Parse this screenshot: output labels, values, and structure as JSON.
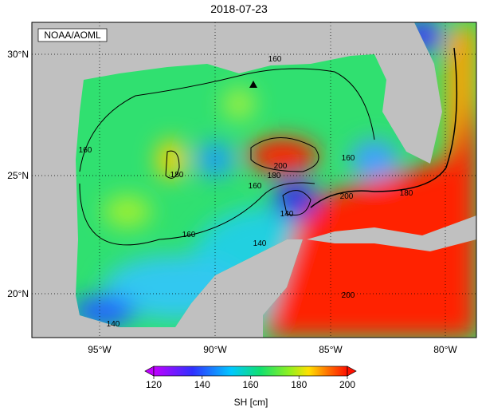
{
  "header": {
    "title": "2018-07-23"
  },
  "map": {
    "credit": "NOAA/AOML",
    "lon_labels": [
      "95°W",
      "90°W",
      "85°W",
      "80°W"
    ],
    "lat_labels": [
      "30°N",
      "25°N",
      "20°N"
    ],
    "contour_labels": [
      "160",
      "160",
      "180",
      "160",
      "160",
      "180",
      "200",
      "140",
      "140",
      "160",
      "200",
      "180",
      "200",
      "140"
    ]
  },
  "colorbar": {
    "ticks": [
      120,
      140,
      160,
      180,
      200
    ],
    "label": "SH [cm]"
  }
}
